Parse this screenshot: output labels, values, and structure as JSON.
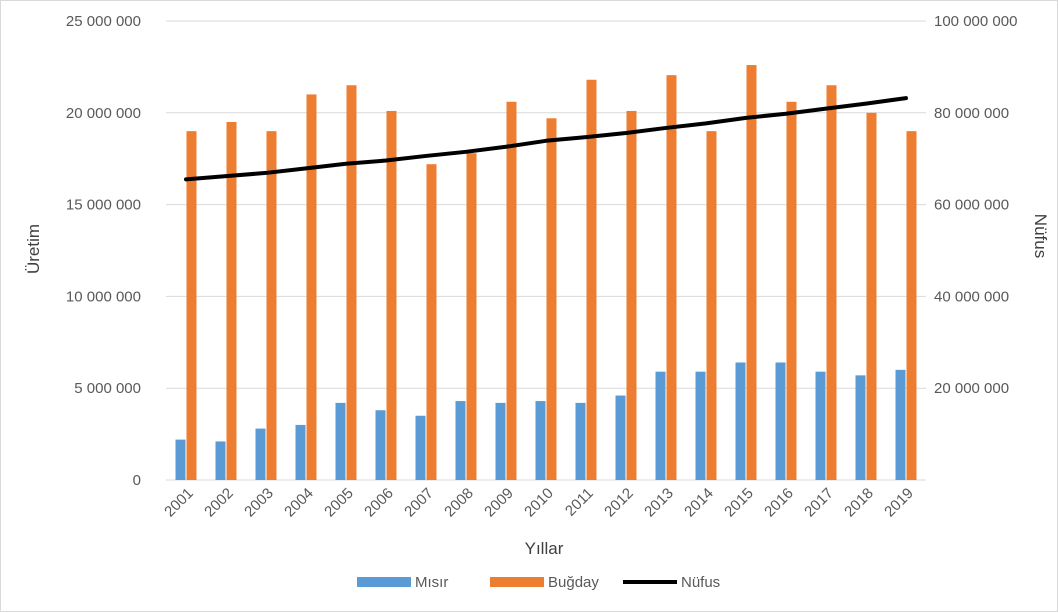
{
  "chart_data": {
    "type": "bar",
    "categories": [
      "2001",
      "2002",
      "2003",
      "2004",
      "2005",
      "2006",
      "2007",
      "2008",
      "2009",
      "2010",
      "2011",
      "2012",
      "2013",
      "2014",
      "2015",
      "2016",
      "2017",
      "2018",
      "2019"
    ],
    "series": [
      {
        "name": "Mısır",
        "type": "bar",
        "axis": "left",
        "color": "#5b9bd5",
        "values": [
          2200000,
          2100000,
          2800000,
          3000000,
          4200000,
          3800000,
          3500000,
          4300000,
          4200000,
          4300000,
          4200000,
          4600000,
          5900000,
          5900000,
          6400000,
          6400000,
          5900000,
          5700000,
          6000000
        ]
      },
      {
        "name": "Buğday",
        "type": "bar",
        "axis": "left",
        "color": "#ed7d31",
        "values": [
          19000000,
          19500000,
          19000000,
          21000000,
          21500000,
          20100000,
          17200000,
          17800000,
          20600000,
          19700000,
          21800000,
          20100000,
          22050000,
          19000000,
          22600000,
          20600000,
          21500000,
          20000000,
          19000000
        ]
      },
      {
        "name": "Nüfus",
        "type": "line",
        "axis": "right",
        "color": "#000000",
        "values": [
          65500000,
          66200000,
          66900000,
          67900000,
          68900000,
          69600000,
          70600000,
          71500000,
          72600000,
          73900000,
          74700000,
          75600000,
          76700000,
          77700000,
          78900000,
          79800000,
          80900000,
          82000000,
          83200000
        ]
      }
    ],
    "xlabel": "Yıllar",
    "ylabel": "Üretim",
    "y2label": "Nüfus",
    "ylim": [
      0,
      25000000
    ],
    "y2lim": [
      0,
      100000000
    ],
    "yticks": [
      "0",
      "5 000 000",
      "10 000 000",
      "15 000 000",
      "20 000 000",
      "25 000 000"
    ],
    "y2ticks": [
      "20 000 000",
      "40 000 000",
      "60 000 000",
      "80 000 000",
      "100 000 000"
    ],
    "grid": true,
    "legend_position": "bottom"
  }
}
